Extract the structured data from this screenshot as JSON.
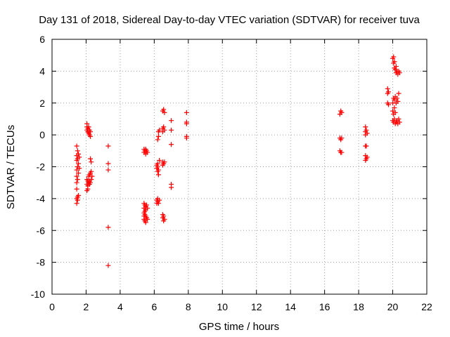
{
  "chart_data": {
    "type": "scatter",
    "title": "Day 131 of 2018, Sidereal Day-to-day VTEC variation (SDTVAR) for receiver tuva",
    "xlabel": "GPS time / hours",
    "ylabel": "SDTVAR / TECUs",
    "xlim": [
      0,
      22
    ],
    "ylim": [
      -10,
      6
    ],
    "xticks": [
      0,
      2,
      4,
      6,
      8,
      10,
      12,
      14,
      16,
      18,
      20,
      22
    ],
    "yticks": [
      -10,
      -8,
      -6,
      -4,
      -2,
      0,
      2,
      4,
      6
    ],
    "grid": true,
    "marker": "+",
    "color": "#ff0000",
    "series": [
      {
        "name": "SDTVAR",
        "points": [
          [
            1.45,
            -0.7
          ],
          [
            1.45,
            -1.3
          ],
          [
            1.45,
            -1.6
          ],
          [
            1.45,
            -2.2
          ],
          [
            1.45,
            -2.6
          ],
          [
            1.45,
            -3.0
          ],
          [
            1.45,
            -3.4
          ],
          [
            1.45,
            -4.0
          ],
          [
            1.45,
            -4.3
          ],
          [
            1.5,
            -1.0
          ],
          [
            1.5,
            -1.5
          ],
          [
            1.5,
            -2.0
          ],
          [
            1.5,
            -2.8
          ],
          [
            1.5,
            -3.9
          ],
          [
            1.5,
            -4.1
          ],
          [
            1.55,
            -1.2
          ],
          [
            1.55,
            -1.8
          ],
          [
            1.55,
            -2.4
          ],
          [
            1.55,
            -3.8
          ],
          [
            1.6,
            -1.4
          ],
          [
            1.6,
            -2.1
          ],
          [
            2.05,
            0.7
          ],
          [
            2.05,
            0.5
          ],
          [
            2.05,
            0.3
          ],
          [
            2.05,
            -2.8
          ],
          [
            2.05,
            -3.1
          ],
          [
            2.05,
            -3.5
          ],
          [
            2.1,
            0.4
          ],
          [
            2.1,
            0.2
          ],
          [
            2.1,
            -2.9
          ],
          [
            2.1,
            -3.2
          ],
          [
            2.1,
            -3.4
          ],
          [
            2.15,
            0.5
          ],
          [
            2.15,
            0.1
          ],
          [
            2.15,
            -2.6
          ],
          [
            2.15,
            -3.0
          ],
          [
            2.2,
            0.3
          ],
          [
            2.2,
            0.0
          ],
          [
            2.2,
            -2.5
          ],
          [
            2.2,
            -2.9
          ],
          [
            2.2,
            -3.1
          ],
          [
            2.25,
            0.2
          ],
          [
            2.25,
            -0.1
          ],
          [
            2.25,
            -1.5
          ],
          [
            2.25,
            -2.4
          ],
          [
            2.25,
            -3.0
          ],
          [
            2.3,
            -1.7
          ],
          [
            2.3,
            -2.3
          ],
          [
            2.3,
            -2.8
          ],
          [
            2.35,
            -2.6
          ],
          [
            3.3,
            -0.7
          ],
          [
            3.3,
            -1.8
          ],
          [
            3.3,
            -2.2
          ],
          [
            3.3,
            -5.8
          ],
          [
            3.3,
            -8.2
          ],
          [
            5.4,
            -0.9
          ],
          [
            5.4,
            -1.1
          ],
          [
            5.4,
            -4.3
          ],
          [
            5.4,
            -4.6
          ],
          [
            5.4,
            -4.9
          ],
          [
            5.4,
            -5.1
          ],
          [
            5.4,
            -5.3
          ],
          [
            5.45,
            -1.0
          ],
          [
            5.45,
            -4.4
          ],
          [
            5.45,
            -4.8
          ],
          [
            5.45,
            -5.0
          ],
          [
            5.45,
            -5.4
          ],
          [
            5.5,
            -0.9
          ],
          [
            5.5,
            -1.2
          ],
          [
            5.5,
            -4.5
          ],
          [
            5.5,
            -4.7
          ],
          [
            5.5,
            -5.1
          ],
          [
            5.5,
            -5.5
          ],
          [
            5.55,
            -1.0
          ],
          [
            5.55,
            -4.4
          ],
          [
            5.55,
            -5.2
          ],
          [
            5.6,
            -1.1
          ],
          [
            5.6,
            -4.6
          ],
          [
            5.6,
            -5.3
          ],
          [
            6.15,
            -1.9
          ],
          [
            6.15,
            -2.1
          ],
          [
            6.15,
            -4.1
          ],
          [
            6.15,
            -4.3
          ],
          [
            6.2,
            -0.3
          ],
          [
            6.2,
            -1.8
          ],
          [
            6.2,
            -2.0
          ],
          [
            6.2,
            -2.3
          ],
          [
            6.2,
            -4.0
          ],
          [
            6.2,
            -4.2
          ],
          [
            6.25,
            0.2
          ],
          [
            6.25,
            -0.1
          ],
          [
            6.25,
            -2.2
          ],
          [
            6.25,
            -2.5
          ],
          [
            6.25,
            -4.3
          ],
          [
            6.3,
            0.3
          ],
          [
            6.3,
            -1.6
          ],
          [
            6.3,
            -4.1
          ],
          [
            6.5,
            1.5
          ],
          [
            6.5,
            0.4
          ],
          [
            6.5,
            0.2
          ],
          [
            6.5,
            -1.7
          ],
          [
            6.5,
            -1.9
          ],
          [
            6.5,
            -5.0
          ],
          [
            6.5,
            -5.2
          ],
          [
            6.55,
            1.6
          ],
          [
            6.55,
            0.5
          ],
          [
            6.55,
            -1.8
          ],
          [
            6.55,
            -5.1
          ],
          [
            6.55,
            -5.4
          ],
          [
            6.6,
            1.4
          ],
          [
            6.6,
            0.3
          ],
          [
            6.6,
            -1.7
          ],
          [
            6.6,
            -5.3
          ],
          [
            7.0,
            0.9
          ],
          [
            7.0,
            0.3
          ],
          [
            7.0,
            -0.6
          ],
          [
            7.0,
            -3.1
          ],
          [
            7.0,
            -3.3
          ],
          [
            7.9,
            1.4
          ],
          [
            7.9,
            0.8
          ],
          [
            7.9,
            0.7
          ],
          [
            7.9,
            -0.1
          ],
          [
            7.9,
            -0.2
          ],
          [
            16.9,
            1.3
          ],
          [
            16.9,
            -0.2
          ],
          [
            16.9,
            -1.0
          ],
          [
            16.95,
            1.5
          ],
          [
            16.95,
            -0.3
          ],
          [
            16.95,
            -1.1
          ],
          [
            17.0,
            1.4
          ],
          [
            17.0,
            -0.2
          ],
          [
            17.0,
            -1.1
          ],
          [
            18.4,
            0.5
          ],
          [
            18.4,
            0.2
          ],
          [
            18.4,
            0.0
          ],
          [
            18.4,
            -0.7
          ],
          [
            18.4,
            -1.3
          ],
          [
            18.4,
            -1.6
          ],
          [
            18.45,
            0.3
          ],
          [
            18.45,
            -0.7
          ],
          [
            18.45,
            -1.5
          ],
          [
            18.5,
            0.1
          ],
          [
            18.5,
            -1.4
          ],
          [
            19.7,
            2.9
          ],
          [
            19.7,
            2.6
          ],
          [
            19.7,
            2.0
          ],
          [
            19.75,
            2.7
          ],
          [
            19.75,
            1.9
          ],
          [
            20.0,
            4.8
          ],
          [
            20.0,
            2.0
          ],
          [
            20.0,
            1.5
          ],
          [
            20.0,
            0.9
          ],
          [
            20.05,
            4.9
          ],
          [
            20.05,
            4.5
          ],
          [
            20.05,
            2.3
          ],
          [
            20.05,
            1.3
          ],
          [
            20.05,
            0.8
          ],
          [
            20.1,
            4.6
          ],
          [
            20.1,
            4.2
          ],
          [
            20.1,
            2.2
          ],
          [
            20.1,
            1.7
          ],
          [
            20.1,
            1.0
          ],
          [
            20.15,
            4.1
          ],
          [
            20.15,
            2.4
          ],
          [
            20.15,
            1.4
          ],
          [
            20.15,
            0.7
          ],
          [
            20.2,
            4.3
          ],
          [
            20.2,
            3.9
          ],
          [
            20.2,
            2.0
          ],
          [
            20.2,
            0.8
          ],
          [
            20.25,
            4.0
          ],
          [
            20.25,
            2.3
          ],
          [
            20.25,
            0.9
          ],
          [
            20.3,
            3.8
          ],
          [
            20.3,
            2.1
          ],
          [
            20.3,
            0.7
          ],
          [
            20.35,
            4.0
          ],
          [
            20.35,
            2.6
          ],
          [
            20.35,
            1.0
          ],
          [
            20.4,
            3.9
          ],
          [
            20.4,
            0.8
          ]
        ]
      }
    ]
  }
}
